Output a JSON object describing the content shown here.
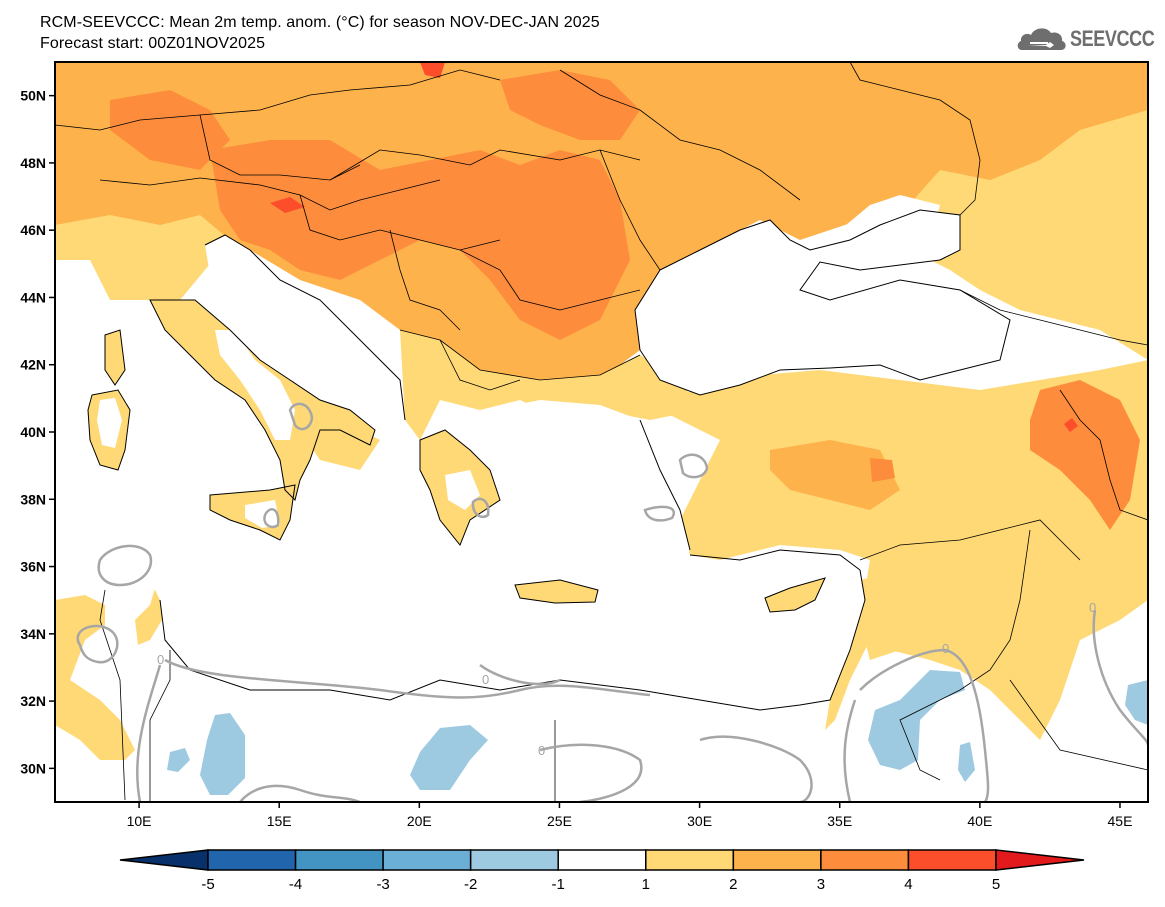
{
  "header": {
    "title_line1": "RCM-SEEVCCC: Mean 2m temp. anom. (°C) for season NOV-DEC-JAN 2025",
    "title_line2": "Forecast start: 00Z01NOV2025"
  },
  "logo": {
    "text": "SEEVCCC",
    "icon": "cloud-logo-icon"
  },
  "map": {
    "variable": "Mean 2m temperature anomaly",
    "units": "°C",
    "season": "NOV-DEC-JAN 2025",
    "lon_range": [
      7,
      46
    ],
    "lat_range": [
      29,
      51
    ],
    "lat_ticks": [
      "50N",
      "48N",
      "46N",
      "44N",
      "42N",
      "40N",
      "38N",
      "36N",
      "34N",
      "32N",
      "30N"
    ],
    "lat_values": [
      50,
      48,
      46,
      44,
      42,
      40,
      38,
      36,
      34,
      32,
      30
    ],
    "lon_ticks": [
      "10E",
      "15E",
      "20E",
      "25E",
      "30E",
      "35E",
      "40E",
      "45E"
    ],
    "lon_values": [
      10,
      15,
      20,
      25,
      30,
      35,
      40,
      45
    ],
    "zero_contour_label": "0",
    "zero_contour_color": "#a6a6a6"
  },
  "colorbar": {
    "levels": [
      "-5",
      "-4",
      "-3",
      "-2",
      "-1",
      "1",
      "2",
      "3",
      "4",
      "5"
    ],
    "colors": [
      "#08306b",
      "#2166ac",
      "#4393c3",
      "#6baed6",
      "#9ecae1",
      "#ffffff",
      "#fed976",
      "#feb24c",
      "#fd8d3c",
      "#fc4e2a",
      "#e31a1c"
    ],
    "under_color": "#08306b",
    "over_color": "#e31a1c"
  }
}
